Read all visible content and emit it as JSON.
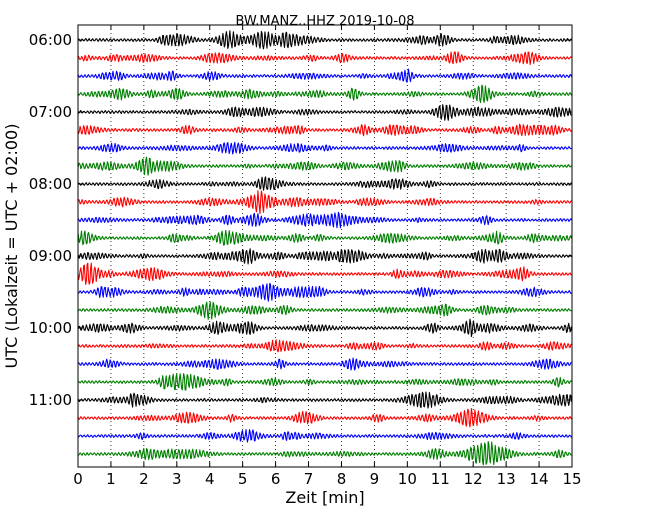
{
  "chart_data": {
    "type": "line",
    "title": "BW.MANZ..HHZ 2019-10-08",
    "xlabel": "Zeit  [min]",
    "ylabel": "UTC (Lokalzeit = UTC + 02:00)",
    "xlim": [
      0,
      15
    ],
    "x_ticks": [
      "0",
      "1",
      "2",
      "3",
      "4",
      "5",
      "6",
      "7",
      "8",
      "9",
      "10",
      "11",
      "12",
      "13",
      "14",
      "15"
    ],
    "y_ticks": [
      "06:00",
      "07:00",
      "08:00",
      "09:00",
      "10:00",
      "11:00"
    ],
    "traces_per_hour": 4,
    "trace_count": 24,
    "trace_colors": [
      "#000000",
      "#ff0000",
      "#0000ff",
      "#008000"
    ],
    "grid": "vertical dotted",
    "legend": "none"
  }
}
